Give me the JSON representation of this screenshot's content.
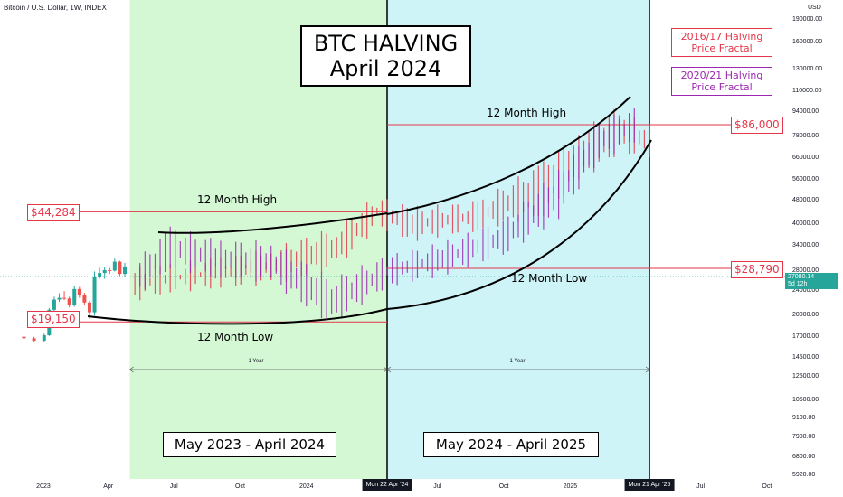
{
  "symbol": "Bitcoin / U.S. Dollar, 1W, INDEX",
  "currency": "USD",
  "title_line1": "BTC HALVING",
  "title_line2": "April 2024",
  "period1": "May 2023 - April 2024",
  "period2": "May 2024 - April 2025",
  "fractal1": "2016/17 Halving Price Fractal",
  "fractal2": "2020/21 Halving Price Fractal",
  "labels": {
    "high_prev": "12 Month High",
    "low_prev": "12 Month Low",
    "high_next": "12 Month High",
    "low_next": "12 Month Low",
    "year1": "1 Year",
    "year2": "1 Year"
  },
  "price_tags": {
    "p44284": "$44,284",
    "p19150": "$19,150",
    "p86000": "$86,000",
    "p28790": "$28,790"
  },
  "last_price": "27080.14",
  "last_countdown": "5d 12h",
  "colors": {
    "green_zone": "#d4f8d4",
    "cyan_zone": "#cff4f8",
    "level_line": "#e5364a",
    "bull": "#26a69a",
    "bear": "#ef5350",
    "fractal1": "#e5364a",
    "fractal2": "#9c27b0"
  },
  "chart_data": {
    "type": "line",
    "y_scale": "log",
    "y_ticks": [
      "190000.00",
      "160000.00",
      "130000.00",
      "110000.00",
      "94000.00",
      "78000.00",
      "66000.00",
      "56000.00",
      "48000.00",
      "40000.00",
      "34000.00",
      "28000.00",
      "24000.00",
      "20000.00",
      "17000.00",
      "14500.00",
      "12500.00",
      "10500.00",
      "9100.00",
      "7900.00",
      "6800.00",
      "5920.00"
    ],
    "y_tick_values": [
      190000,
      160000,
      130000,
      110000,
      94000,
      78000,
      66000,
      56000,
      48000,
      40000,
      34000,
      28000,
      24000,
      20000,
      17000,
      14500,
      12500,
      10500,
      9100,
      7900,
      6800,
      5920
    ],
    "x_ticks": [
      "2023",
      "Apr",
      "Jul",
      "Oct",
      "2024",
      "Jul",
      "Oct",
      "2025",
      "Jul",
      "Oct"
    ],
    "x_tick_dates": [
      "2023-01-01",
      "2023-04-01",
      "2023-07-01",
      "2023-10-01",
      "2024-01-01",
      "2024-07-01",
      "2024-10-01",
      "2025-01-01",
      "2025-07-01",
      "2025-10-01"
    ],
    "x_badges": [
      "Mon 22 Apr '24",
      "Mon 21 Apr '25"
    ],
    "x_badge_dates": [
      "2024-04-22",
      "2025-04-21"
    ],
    "levels": [
      {
        "label": "$44,284",
        "value": 44284,
        "from": "2022-12-01",
        "to": "2024-04-22"
      },
      {
        "label": "$19,150",
        "value": 19150,
        "from": "2022-12-01",
        "to": "2024-04-22"
      },
      {
        "label": "$86,000",
        "value": 86000,
        "from": "2024-04-22",
        "to": "2025-08-01"
      },
      {
        "label": "$28,790",
        "value": 28790,
        "from": "2024-04-22",
        "to": "2025-08-01"
      }
    ],
    "zones": [
      {
        "label": "May 2023 - April 2024",
        "from": "2023-05-01",
        "to": "2024-04-22"
      },
      {
        "label": "May 2024 - April 2025",
        "from": "2024-04-22",
        "to": "2025-04-21"
      }
    ],
    "candles": [
      {
        "date": "2022-12-05",
        "open": 17100,
        "close": 16900,
        "high": 17400,
        "low": 16700
      },
      {
        "date": "2022-12-19",
        "open": 16900,
        "close": 16600,
        "high": 17100,
        "low": 16400
      },
      {
        "date": "2023-01-02",
        "open": 16600,
        "close": 17300,
        "high": 17500,
        "low": 16500
      },
      {
        "date": "2023-01-09",
        "open": 17300,
        "close": 21000,
        "high": 21300,
        "low": 17200
      },
      {
        "date": "2023-01-16",
        "open": 21000,
        "close": 22700,
        "high": 23200,
        "low": 20600
      },
      {
        "date": "2023-01-23",
        "open": 22700,
        "close": 23000,
        "high": 23800,
        "low": 22300
      },
      {
        "date": "2023-01-30",
        "open": 23000,
        "close": 22900,
        "high": 24200,
        "low": 22600
      },
      {
        "date": "2023-02-06",
        "open": 22900,
        "close": 21800,
        "high": 23200,
        "low": 21400
      },
      {
        "date": "2023-02-13",
        "open": 21800,
        "close": 24600,
        "high": 25200,
        "low": 21500
      },
      {
        "date": "2023-02-20",
        "open": 24600,
        "close": 23500,
        "high": 25000,
        "low": 23000
      },
      {
        "date": "2023-02-27",
        "open": 23500,
        "close": 22200,
        "high": 23900,
        "low": 21800
      },
      {
        "date": "2023-03-06",
        "open": 22200,
        "close": 20600,
        "high": 22500,
        "low": 19600
      },
      {
        "date": "2023-03-13",
        "open": 20600,
        "close": 26900,
        "high": 28100,
        "low": 20100
      },
      {
        "date": "2023-03-20",
        "open": 26900,
        "close": 27800,
        "high": 28900,
        "low": 26600
      },
      {
        "date": "2023-03-27",
        "open": 27800,
        "close": 28400,
        "high": 29100,
        "low": 26600
      },
      {
        "date": "2023-04-03",
        "open": 28400,
        "close": 28300,
        "high": 28900,
        "low": 27600
      },
      {
        "date": "2023-04-10",
        "open": 28300,
        "close": 30300,
        "high": 31000,
        "low": 28100
      },
      {
        "date": "2023-04-17",
        "open": 30300,
        "close": 27600,
        "high": 30500,
        "low": 27200
      },
      {
        "date": "2023-04-24",
        "open": 27600,
        "close": 29200,
        "high": 30000,
        "low": 27000
      }
    ],
    "fractal_2016_17": [
      {
        "date": "2023-05-08",
        "low": 23500,
        "high": 27800
      },
      {
        "date": "2023-06-26",
        "low": 25000,
        "high": 28500
      },
      {
        "date": "2023-09-04",
        "low": 26000,
        "high": 30000
      },
      {
        "date": "2023-11-13",
        "low": 26500,
        "high": 32000
      },
      {
        "date": "2024-02-12",
        "low": 30000,
        "high": 38000
      },
      {
        "date": "2024-04-08",
        "low": 41000,
        "high": 48000
      },
      {
        "date": "2024-05-27",
        "low": 37000,
        "high": 44000
      },
      {
        "date": "2024-08-26",
        "low": 40000,
        "high": 46000
      },
      {
        "date": "2024-11-25",
        "low": 45000,
        "high": 62000
      },
      {
        "date": "2025-01-13",
        "low": 58000,
        "high": 78000
      },
      {
        "date": "2025-03-10",
        "low": 72000,
        "high": 95000
      },
      {
        "date": "2025-04-28",
        "low": 70000,
        "high": 80000
      }
    ],
    "fractal_2020_21": [
      {
        "date": "2023-05-15",
        "low": 25000,
        "high": 30000
      },
      {
        "date": "2023-06-26",
        "low": 30000,
        "high": 38000
      },
      {
        "date": "2023-09-04",
        "low": 28000,
        "high": 34000
      },
      {
        "date": "2023-11-13",
        "low": 27000,
        "high": 34000
      },
      {
        "date": "2024-02-05",
        "low": 19500,
        "high": 25500
      },
      {
        "date": "2024-04-22",
        "low": 26000,
        "high": 30500
      },
      {
        "date": "2024-07-08",
        "low": 28500,
        "high": 33500
      },
      {
        "date": "2024-09-30",
        "low": 33000,
        "high": 40000
      },
      {
        "date": "2024-12-16",
        "low": 44000,
        "high": 58000
      },
      {
        "date": "2025-02-10",
        "low": 68000,
        "high": 85000
      },
      {
        "date": "2025-04-07",
        "low": 80000,
        "high": 95000
      }
    ]
  }
}
